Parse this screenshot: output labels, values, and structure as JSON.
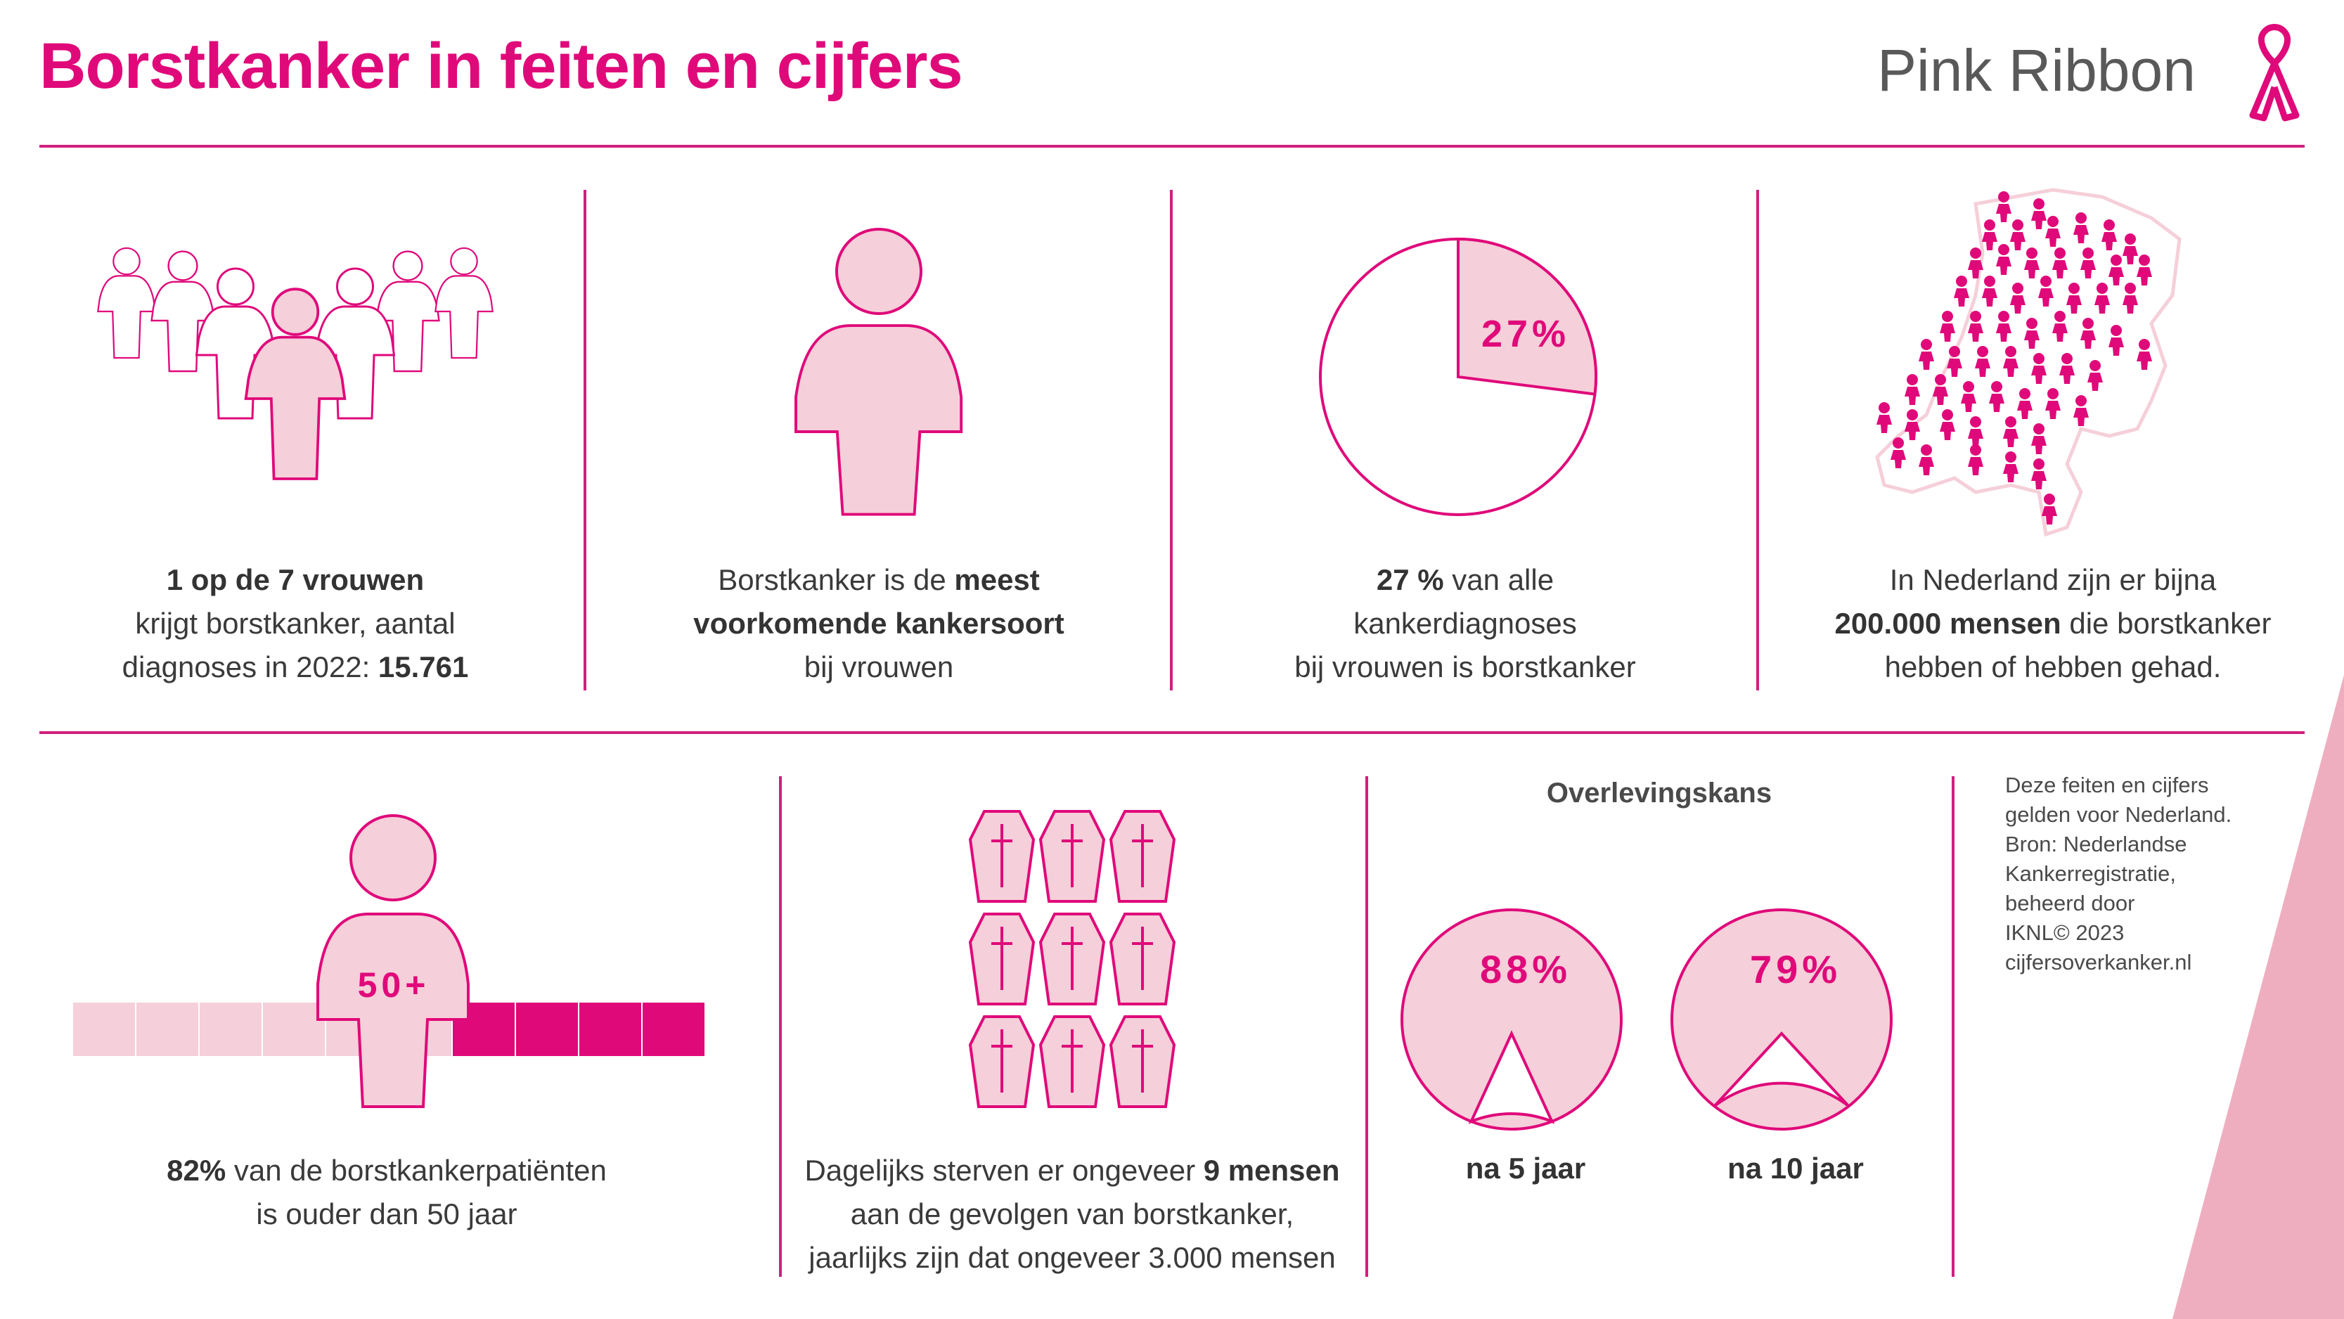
{
  "title": "Borstkanker in feiten en cijfers",
  "brand": "Pink Ribbon",
  "colors": {
    "accent": "#e0097a",
    "light_pink": "#f5cfd9",
    "dark_pink": "#e0097a",
    "line": "#d21f7e",
    "corner": "#eeaec0"
  },
  "facts": {
    "one_in_seven": {
      "bold": "1 op de 7 vrouwen",
      "line2": "krijgt borstkanker, aantal",
      "line3_pre": "diagnoses in 2022: ",
      "line3_bold": "15.761"
    },
    "most_common": {
      "pre": "Borstkanker is de ",
      "bold1": "meest",
      "bold2": "voorkomende kankersoort",
      "line3": "bij vrouwen"
    },
    "share": {
      "pie_label": "27%",
      "pie_value": 27,
      "bold": "27 %",
      "line1_post": " van alle",
      "line2": "kankerdiagnoses",
      "line3": "bij vrouwen is borstkanker"
    },
    "netherlands": {
      "line1": "In Nederland zijn er bijna",
      "bold": "200.000 mensen",
      "line2_post": " die borstkanker",
      "line3": "hebben of hebben gehad."
    }
  },
  "age": {
    "label": "50+",
    "share_percent": 82,
    "bold": "82%",
    "line1_post": " van de borstkankerpatiënten",
    "line2": "is ouder dan 50 jaar"
  },
  "deaths": {
    "pre": "Dagelijks sterven er ongeveer ",
    "bold": "9 mensen",
    "line2": "aan de gevolgen van borstkanker,",
    "line3": "jaarlijks zijn dat ongeveer 3.000 mensen",
    "coffins": 9
  },
  "survival": {
    "title": "Overlevingskans",
    "items": [
      {
        "value": 88,
        "label": "88%",
        "caption": "na 5 jaar"
      },
      {
        "value": 79,
        "label": "79%",
        "caption": "na 10 jaar"
      }
    ]
  },
  "source_note": [
    "Deze feiten en cijfers",
    "gelden voor Nederland.",
    "Bron: Nederlandse",
    "Kankerregistratie,",
    "beheerd door",
    "IKNL© 2023",
    "cijfersoverkanker.nl"
  ]
}
